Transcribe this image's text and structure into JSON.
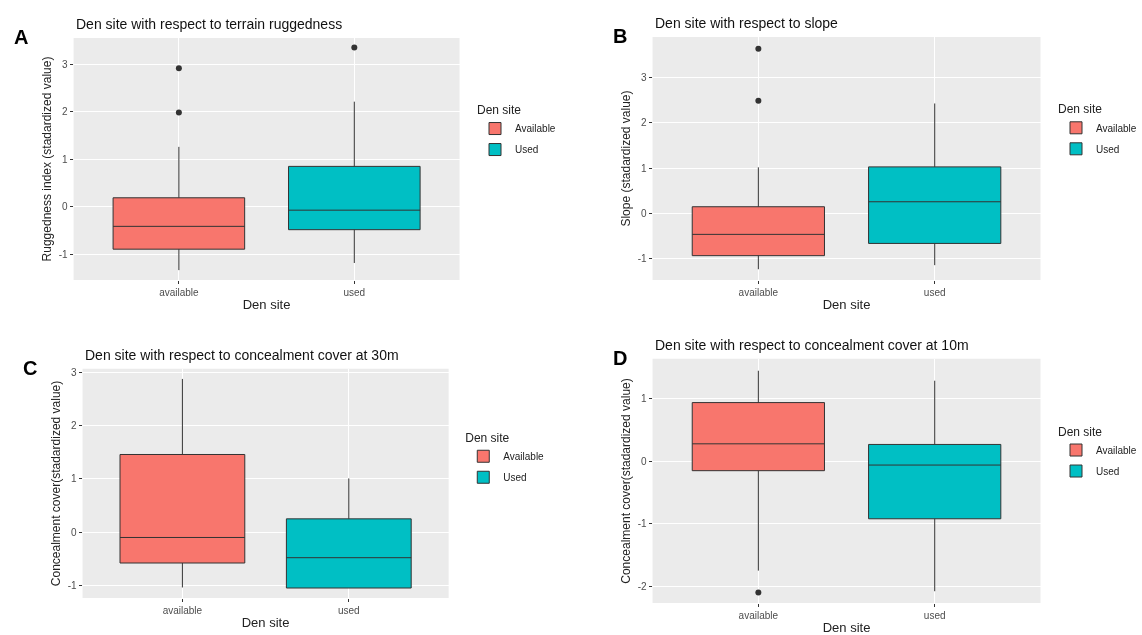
{
  "chart_data": [
    {
      "type": "box",
      "title": "Den site with respect to terrain ruggedness",
      "xlabel": "Den site",
      "ylabel": "Ruggedness index (stadardized value)",
      "legend_title": "Den site",
      "annotations": [
        "A"
      ],
      "categories": [
        "available",
        "used"
      ],
      "ylim": [
        -1.54,
        3.55
      ],
      "yticks": [
        -1,
        0,
        1,
        2,
        3
      ],
      "grid": true,
      "legend": "right",
      "series": [
        {
          "name": "Available",
          "color": "#f8766d",
          "boxes": [
            {
              "low": -1.33,
              "q1": -0.89,
              "median": -0.41,
              "q3": 0.19,
              "high": 1.26,
              "outliers": [
                2.91,
                1.98
              ]
            },
            null
          ]
        },
        {
          "name": "Used",
          "color": "#00bfc4",
          "boxes": [
            null,
            {
              "low": -1.18,
              "q1": -0.48,
              "median": -0.07,
              "q3": 0.85,
              "high": 2.21,
              "outliers": [
                3.35
              ]
            }
          ]
        }
      ]
    },
    {
      "type": "box",
      "title": "Den site with respect to slope",
      "xlabel": "Den site",
      "ylabel": "Slope (stadardized value)",
      "legend_title": "Den site",
      "annotations": [
        "B"
      ],
      "categories": [
        "available",
        "used"
      ],
      "ylim": [
        -1.47,
        3.9
      ],
      "yticks": [
        -1,
        0,
        1,
        2,
        3
      ],
      "grid": true,
      "legend": "right",
      "series": [
        {
          "name": "Available",
          "color": "#f8766d",
          "boxes": [
            {
              "low": -1.23,
              "q1": -0.93,
              "median": -0.46,
              "q3": 0.15,
              "high": 1.02,
              "outliers": [
                3.64,
                2.49
              ]
            },
            null
          ]
        },
        {
          "name": "Used",
          "color": "#00bfc4",
          "boxes": [
            null,
            {
              "low": -1.14,
              "q1": -0.66,
              "median": 0.26,
              "q3": 1.03,
              "high": 2.43
            }
          ]
        }
      ]
    },
    {
      "type": "box",
      "title": "Den site with respect to concealment cover at 30m",
      "xlabel": "Den site",
      "ylabel": "Concealment cover(stadardized value)",
      "legend_title": "Den site",
      "annotations": [
        "C"
      ],
      "categories": [
        "available",
        "used"
      ],
      "ylim": [
        -1.24,
        3.07
      ],
      "yticks": [
        -1,
        0,
        1,
        2,
        3
      ],
      "grid": true,
      "legend": "right",
      "series": [
        {
          "name": "Available",
          "color": "#f8766d",
          "boxes": [
            {
              "low": -1.04,
              "q1": -0.58,
              "median": -0.1,
              "q3": 1.46,
              "high": 2.88
            },
            null
          ]
        },
        {
          "name": "Used",
          "color": "#00bfc4",
          "boxes": [
            null,
            {
              "low": -1.05,
              "q1": -1.05,
              "median": -0.48,
              "q3": 0.25,
              "high": 1.01
            }
          ]
        }
      ]
    },
    {
      "type": "box",
      "title": "Den site with respect to concealment cover at 10m",
      "xlabel": "Den site",
      "ylabel": "Concealment cover(stadardized value)",
      "legend_title": "Den site",
      "annotations": [
        "D"
      ],
      "categories": [
        "available",
        "used"
      ],
      "ylim": [
        -2.27,
        1.64
      ],
      "yticks": [
        -2,
        -1,
        0,
        1
      ],
      "grid": true,
      "legend": "right",
      "series": [
        {
          "name": "Available",
          "color": "#f8766d",
          "boxes": [
            {
              "low": -1.75,
              "q1": -0.15,
              "median": 0.28,
              "q3": 0.94,
              "high": 1.45,
              "outliers": [
                -2.1
              ]
            },
            null
          ]
        },
        {
          "name": "Used",
          "color": "#00bfc4",
          "boxes": [
            null,
            {
              "low": -2.08,
              "q1": -0.92,
              "median": -0.06,
              "q3": 0.27,
              "high": 1.29
            }
          ]
        }
      ]
    }
  ]
}
